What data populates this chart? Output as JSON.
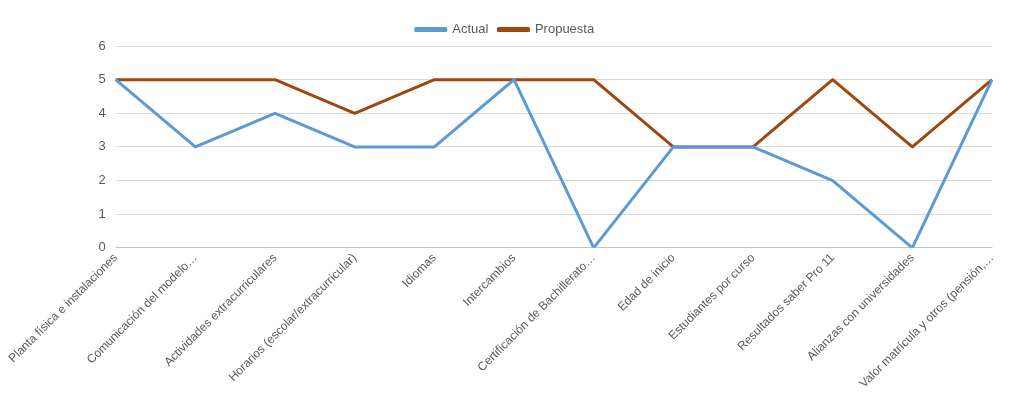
{
  "chart_data": {
    "type": "line",
    "categories": [
      "Planta física e instalaciones",
      "Comunicación del modelo…",
      "Actividades extracurriculares",
      "Horarios (escolar/extracurricular)",
      "Idiomas",
      "Intercambios",
      "Certificación de Bachillerato…",
      "Edad de inicio",
      "Estudiantes por curso",
      "Resultados saber Pro 11",
      "Alianzas con universidades",
      "Valor matrícula y otros (pensión,…"
    ],
    "series": [
      {
        "name": "Actual",
        "color": "#5b9bd5",
        "values": [
          5,
          3,
          4,
          3,
          3,
          5,
          0,
          3,
          3,
          2,
          0,
          5
        ]
      },
      {
        "name": "Propuesta",
        "color": "#9e480e",
        "values": [
          5,
          5,
          5,
          4,
          5,
          5,
          5,
          3,
          3,
          5,
          3,
          5
        ]
      }
    ],
    "ylim": [
      0,
      6
    ],
    "yticks": [
      0,
      1,
      2,
      3,
      4,
      5,
      6
    ],
    "grid": "y",
    "legend": "top",
    "marker": "none"
  }
}
